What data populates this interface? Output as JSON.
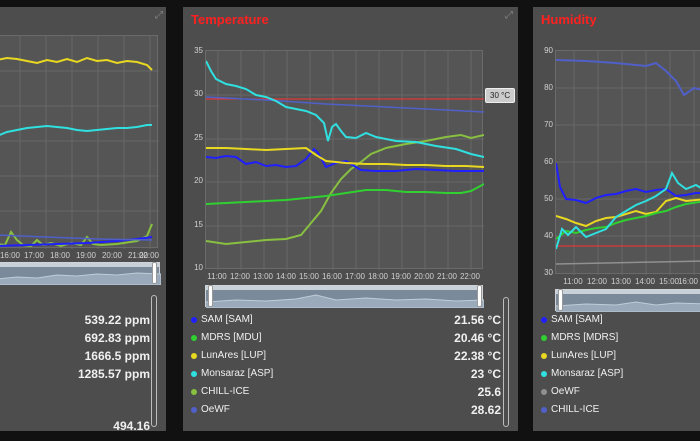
{
  "colors": {
    "background": "#111111",
    "panel": "#4d4d4d",
    "title": "#ff2020",
    "sam": "#2020ff",
    "mdrs": "#30d030",
    "lunares": "#e8d820",
    "monsaraz": "#30e0e0",
    "chill": "#88c040",
    "oewf": "#5060c8",
    "limit": "#ff3030"
  },
  "expand_icon": "expand-icon",
  "panels": {
    "co2": {
      "title": "",
      "x_ticks": [
        "16:00",
        "17:00",
        "18:00",
        "19:00",
        "20:00",
        "21:00",
        "22:00"
      ],
      "values": [
        "539.22 ppm",
        "692.83 ppm",
        "1666.5 ppm",
        "1285.57 ppm",
        "",
        "494.16"
      ]
    },
    "temperature": {
      "title": "Temperature",
      "y_ticks": [
        "35",
        "30",
        "25",
        "20",
        "15",
        "10"
      ],
      "x_ticks": [
        "11:00",
        "12:00",
        "13:00",
        "14:00",
        "15:00",
        "16:00",
        "17:00",
        "18:00",
        "19:00",
        "20:00",
        "21:00",
        "22:00"
      ],
      "limit_label": "30 °C",
      "legend": [
        {
          "name": "SAM [SAM]",
          "value": "21.56 °C",
          "color": "#2020ff"
        },
        {
          "name": "MDRS [MDU]",
          "value": "20.46 °C",
          "color": "#30d030"
        },
        {
          "name": "LunAres [LUP]",
          "value": "22.38 °C",
          "color": "#e8d820"
        },
        {
          "name": "Monsaraz [ASP]",
          "value": "23 °C",
          "color": "#30e0e0"
        },
        {
          "name": "CHILL-ICE",
          "value": "25.6",
          "color": "#88c040"
        },
        {
          "name": "OeWF",
          "value": "28.62",
          "color": "#5060c8"
        }
      ]
    },
    "humidity": {
      "title": "Humidity",
      "y_ticks": [
        "90",
        "80",
        "70",
        "60",
        "50",
        "40",
        "30"
      ],
      "x_ticks": [
        "11:00",
        "12:00",
        "13:00",
        "14:00",
        "15:00",
        "16:00"
      ],
      "legend": [
        {
          "name": "SAM [SAM]",
          "color": "#2020ff"
        },
        {
          "name": "MDRS [MDRS]",
          "color": "#30d030"
        },
        {
          "name": "LunAres [LUP]",
          "color": "#e8d820"
        },
        {
          "name": "Monsaraz [ASP]",
          "color": "#30e0e0"
        },
        {
          "name": "OeWF",
          "color": "#909090"
        },
        {
          "name": "CHILL-ICE",
          "color": "#5060c8"
        }
      ]
    }
  }
}
